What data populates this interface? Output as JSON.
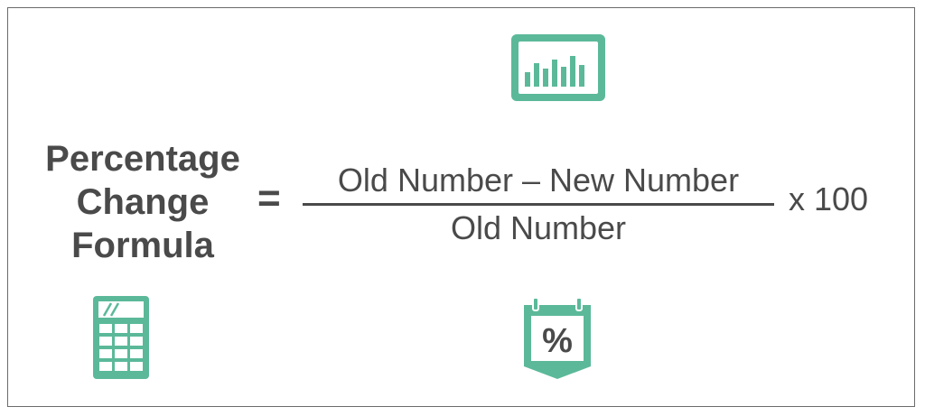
{
  "title": {
    "line1": "Percentage",
    "line2": "Change",
    "line3": "Formula"
  },
  "formula": {
    "equals": "=",
    "numerator": "Old Number – New Number",
    "denominator": "Old Number",
    "multiplier": "x 100"
  },
  "icons": {
    "chart": "bar-chart-monitor-icon",
    "calculator": "calculator-icon",
    "percent": "percent-calendar-icon",
    "percent_glyph": "%"
  },
  "colors": {
    "accent": "#5bb99a",
    "text": "#4a4a4a",
    "border": "#6b6b6b"
  }
}
